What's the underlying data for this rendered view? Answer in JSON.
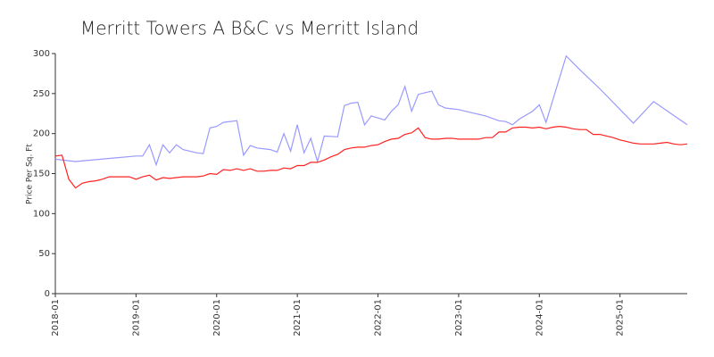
{
  "chart_data": {
    "type": "line",
    "title": "Merritt Towers A B&C vs Merritt Island",
    "y_label": "Price Per Sq. Ft",
    "xlim": [
      "2018-01",
      "2025-11"
    ],
    "xticks": [
      "2018-01",
      "2019-01",
      "2020-01",
      "2021-01",
      "2022-01",
      "2023-01",
      "2024-01",
      "2025-01"
    ],
    "ylim": [
      0,
      300
    ],
    "yticks": [
      0,
      50,
      100,
      150,
      200,
      250,
      300
    ],
    "series": [
      {
        "color": "#9999ff",
        "x": [
          "2018-01",
          "2018-04",
          "2019-01",
          "2019-02",
          "2019-03",
          "2019-04",
          "2019-05",
          "2019-06",
          "2019-07",
          "2019-08",
          "2019-10",
          "2019-11",
          "2019-12",
          "2020-01",
          "2020-02",
          "2020-04",
          "2020-05",
          "2020-06",
          "2020-07",
          "2020-09",
          "2020-10",
          "2020-11",
          "2020-12",
          "2021-01",
          "2021-02",
          "2021-03",
          "2021-04",
          "2021-05",
          "2021-07",
          "2021-08",
          "2021-09",
          "2021-10",
          "2021-11",
          "2021-12",
          "2022-02",
          "2022-03",
          "2022-04",
          "2022-05",
          "2022-06",
          "2022-07",
          "2022-09",
          "2022-10",
          "2022-11",
          "2023-01",
          "2023-03",
          "2023-05",
          "2023-07",
          "2023-08",
          "2023-09",
          "2023-10",
          "2023-12",
          "2024-01",
          "2024-02",
          "2024-05",
          "2024-07",
          "2024-10",
          "2025-03",
          "2025-05",
          "2025-06",
          "2025-11"
        ],
        "values": [
          168,
          165,
          172,
          172,
          186,
          161,
          186,
          176,
          186,
          180,
          176,
          175,
          207,
          209,
          214,
          216,
          173,
          185,
          182,
          180,
          177,
          200,
          178,
          211,
          176,
          194,
          165,
          197,
          196,
          235,
          238,
          239,
          211,
          222,
          217,
          228,
          236,
          259,
          228,
          249,
          253,
          236,
          232,
          230,
          226,
          222,
          216,
          215,
          211,
          218,
          228,
          236,
          214,
          297,
          280,
          256,
          213,
          231,
          240,
          211
        ]
      },
      {
        "color": "#ff2222",
        "x": [
          "2018-01",
          "2018-02",
          "2018-03",
          "2018-04",
          "2018-05",
          "2018-06",
          "2018-07",
          "2018-08",
          "2018-09",
          "2018-10",
          "2018-11",
          "2018-12",
          "2019-01",
          "2019-02",
          "2019-03",
          "2019-04",
          "2019-05",
          "2019-06",
          "2019-07",
          "2019-08",
          "2019-09",
          "2019-10",
          "2019-11",
          "2019-12",
          "2020-01",
          "2020-02",
          "2020-03",
          "2020-04",
          "2020-05",
          "2020-06",
          "2020-07",
          "2020-08",
          "2020-09",
          "2020-10",
          "2020-11",
          "2020-12",
          "2021-01",
          "2021-02",
          "2021-03",
          "2021-04",
          "2021-05",
          "2021-06",
          "2021-07",
          "2021-08",
          "2021-09",
          "2021-10",
          "2021-11",
          "2021-12",
          "2022-01",
          "2022-02",
          "2022-03",
          "2022-04",
          "2022-05",
          "2022-06",
          "2022-07",
          "2022-08",
          "2022-09",
          "2022-10",
          "2022-11",
          "2022-12",
          "2023-01",
          "2023-02",
          "2023-03",
          "2023-04",
          "2023-05",
          "2023-06",
          "2023-07",
          "2023-08",
          "2023-09",
          "2023-10",
          "2023-11",
          "2023-12",
          "2024-01",
          "2024-02",
          "2024-03",
          "2024-04",
          "2024-05",
          "2024-06",
          "2024-07",
          "2024-08",
          "2024-09",
          "2024-10",
          "2024-11",
          "2024-12",
          "2025-01",
          "2025-02",
          "2025-03",
          "2025-04",
          "2025-05",
          "2025-06",
          "2025-07",
          "2025-08",
          "2025-09",
          "2025-10",
          "2025-11"
        ],
        "values": [
          172,
          173,
          143,
          132,
          138,
          140,
          141,
          143,
          146,
          146,
          146,
          146,
          143,
          146,
          148,
          142,
          145,
          144,
          145,
          146,
          146,
          146,
          147,
          150,
          149,
          155,
          154,
          156,
          154,
          156,
          153,
          153,
          154,
          154,
          157,
          156,
          160,
          160,
          164,
          164,
          167,
          171,
          174,
          180,
          182,
          183,
          183,
          185,
          186,
          190,
          193,
          194,
          199,
          201,
          207,
          195,
          193,
          193,
          194,
          194,
          193,
          193,
          193,
          193,
          195,
          195,
          202,
          202,
          207,
          208,
          208,
          207,
          208,
          206,
          208,
          209,
          208,
          206,
          205,
          205,
          199,
          199,
          197,
          195,
          192,
          190,
          188,
          187,
          187,
          187,
          188,
          189,
          187,
          186,
          187
        ]
      }
    ]
  }
}
